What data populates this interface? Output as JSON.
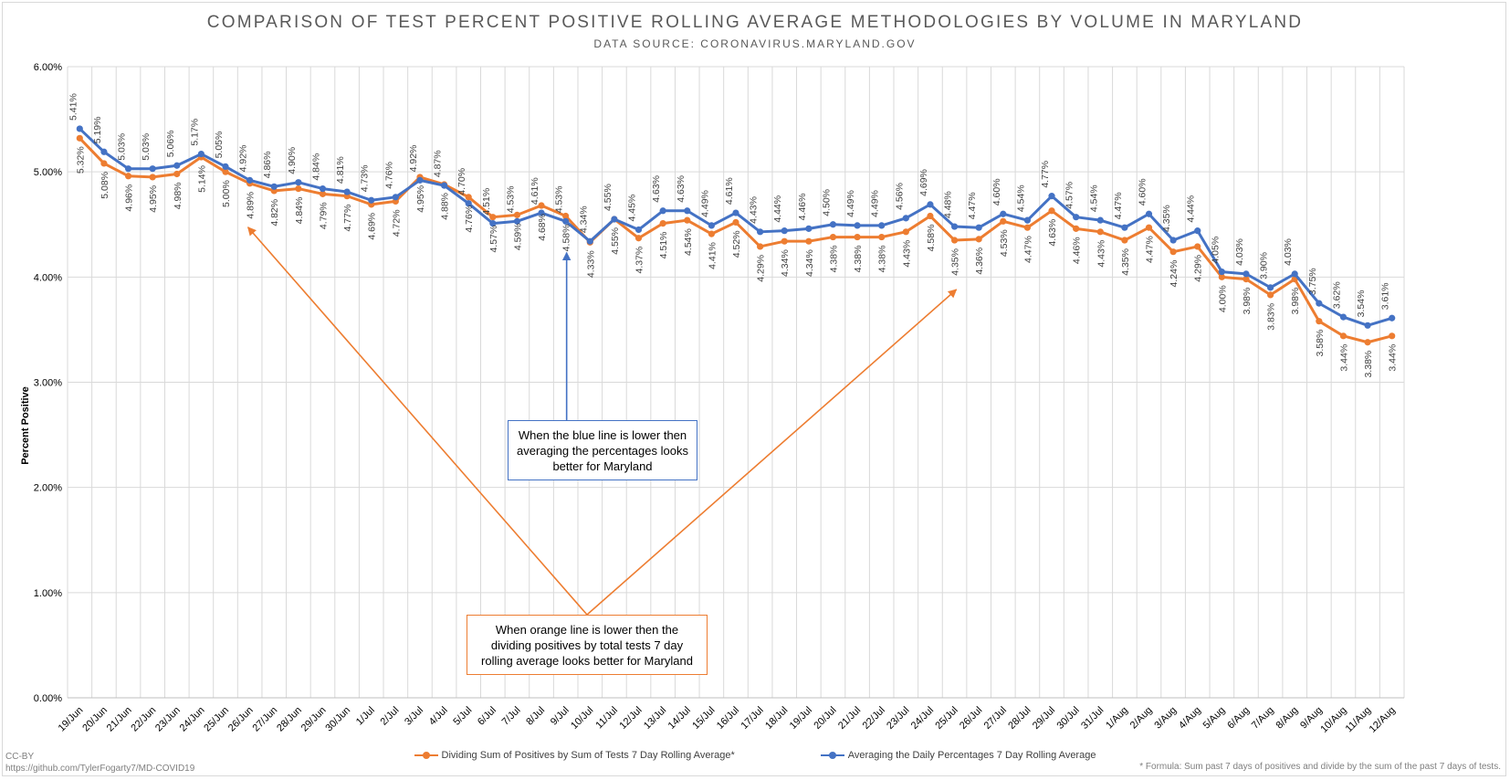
{
  "chart_data": {
    "type": "line",
    "title": "COMPARISON OF TEST PERCENT POSITIVE ROLLING AVERAGE METHODOLOGIES BY VOLUME IN MARYLAND",
    "subtitle": "DATA SOURCE: CORONAVIRUS.MARYLAND.GOV",
    "xlabel": "",
    "ylabel": "Percent Positive",
    "ylim": [
      0,
      6
    ],
    "yticks": [
      "0.00%",
      "1.00%",
      "2.00%",
      "3.00%",
      "4.00%",
      "5.00%",
      "6.00%"
    ],
    "grid": true,
    "legend_position": "bottom",
    "categories": [
      "19/Jun",
      "20/Jun",
      "21/Jun",
      "22/Jun",
      "23/Jun",
      "24/Jun",
      "25/Jun",
      "26/Jun",
      "27/Jun",
      "28/Jun",
      "29/Jun",
      "30/Jun",
      "1/Jul",
      "2/Jul",
      "3/Jul",
      "4/Jul",
      "5/Jul",
      "6/Jul",
      "7/Jul",
      "8/Jul",
      "9/Jul",
      "10/Jul",
      "11/Jul",
      "12/Jul",
      "13/Jul",
      "14/Jul",
      "15/Jul",
      "16/Jul",
      "17/Jul",
      "18/Jul",
      "19/Jul",
      "20/Jul",
      "21/Jul",
      "22/Jul",
      "23/Jul",
      "24/Jul",
      "25/Jul",
      "26/Jul",
      "27/Jul",
      "28/Jul",
      "29/Jul",
      "30/Jul",
      "31/Jul",
      "1/Aug",
      "2/Aug",
      "3/Aug",
      "4/Aug",
      "5/Aug",
      "6/Aug",
      "7/Aug",
      "8/Aug",
      "9/Aug",
      "10/Aug",
      "11/Aug",
      "12/Aug"
    ],
    "series": [
      {
        "name": "Dividing Sum of Positives by Sum of Tests 7 Day Rolling Average*",
        "color": "#ed7d31",
        "label_position": "below",
        "values": [
          5.32,
          5.08,
          4.96,
          4.95,
          4.98,
          5.14,
          5.0,
          4.89,
          4.82,
          4.84,
          4.79,
          4.77,
          4.69,
          4.72,
          4.95,
          4.88,
          4.76,
          4.57,
          4.59,
          4.68,
          4.58,
          4.33,
          4.55,
          4.37,
          4.51,
          4.54,
          4.41,
          4.52,
          4.29,
          4.34,
          4.34,
          4.38,
          4.38,
          4.38,
          4.43,
          4.58,
          4.35,
          4.36,
          4.53,
          4.47,
          4.63,
          4.46,
          4.43,
          4.35,
          4.47,
          4.24,
          4.29,
          4.0,
          3.98,
          3.83,
          3.98,
          3.58,
          3.44,
          3.38,
          3.44
        ]
      },
      {
        "name": "Averaging the Daily Percentages 7 Day Rolling Average",
        "color": "#4472c4",
        "label_position": "above",
        "values": [
          5.41,
          5.19,
          5.03,
          5.03,
          5.06,
          5.17,
          5.05,
          4.92,
          4.86,
          4.9,
          4.84,
          4.81,
          4.73,
          4.76,
          4.92,
          4.87,
          4.7,
          4.51,
          4.53,
          4.61,
          4.53,
          4.34,
          4.55,
          4.45,
          4.63,
          4.63,
          4.49,
          4.61,
          4.43,
          4.44,
          4.46,
          4.5,
          4.49,
          4.49,
          4.56,
          4.69,
          4.48,
          4.47,
          4.6,
          4.54,
          4.77,
          4.57,
          4.54,
          4.47,
          4.6,
          4.35,
          4.44,
          4.05,
          4.03,
          3.9,
          4.03,
          3.75,
          3.62,
          3.54,
          3.61
        ]
      }
    ],
    "annotations": [
      {
        "id": "blue",
        "text": "When the blue line is lower then averaging the percentages looks better for Maryland",
        "color": "#4472c4"
      },
      {
        "id": "orange",
        "text": "When orange line is lower then the dividing positives by total tests 7 day rolling average looks better for Maryland",
        "color": "#ed7d31"
      }
    ]
  },
  "credit": {
    "license": "CC-BY",
    "source_url": "https://github.com/TylerFogarty7/MD-COVID19"
  },
  "footnote": "* Formula: Sum past 7 days of positives and divide by the sum of the past 7 days of tests."
}
